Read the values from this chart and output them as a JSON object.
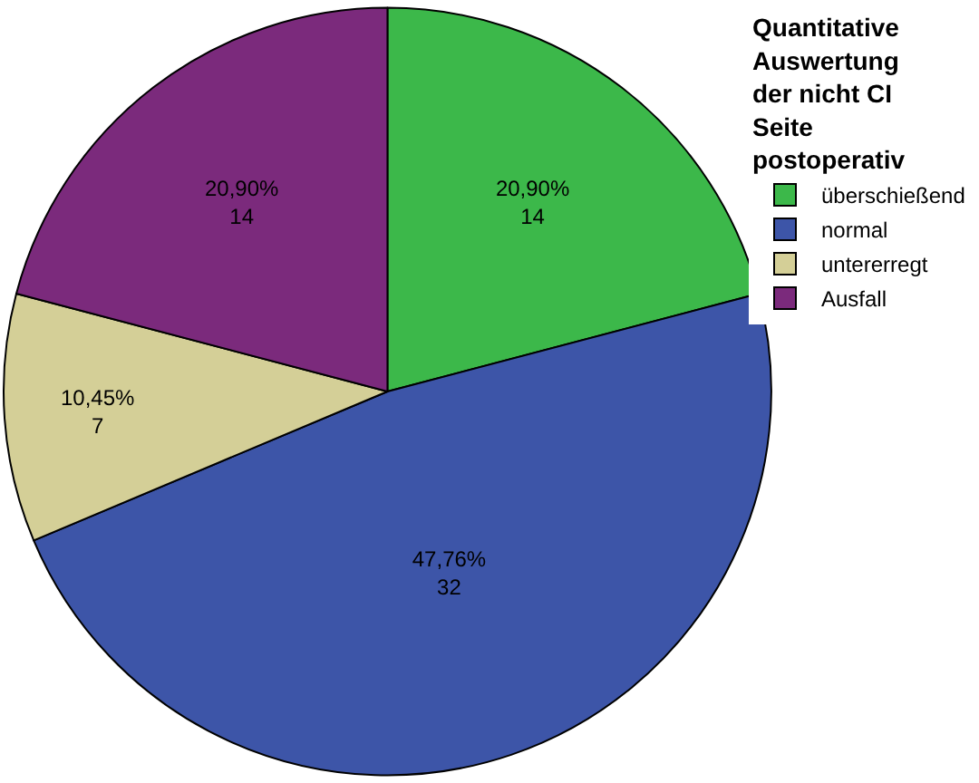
{
  "chart_data": {
    "type": "pie",
    "legend_title": "Quantitative Auswertung der nicht CI Seite postoperativ",
    "categories": [
      "überschießend",
      "normal",
      "untererregt",
      "Ausfall"
    ],
    "values": [
      14,
      32,
      7,
      14
    ],
    "colors": [
      "#3cb84a",
      "#3d55a8",
      "#d4cf97",
      "#7b2a7c"
    ],
    "value_labels": [
      "20,90%\n14",
      "47,76%\n32",
      "10,45%\n7",
      "20,90%\n14"
    ],
    "legend": "top right"
  }
}
